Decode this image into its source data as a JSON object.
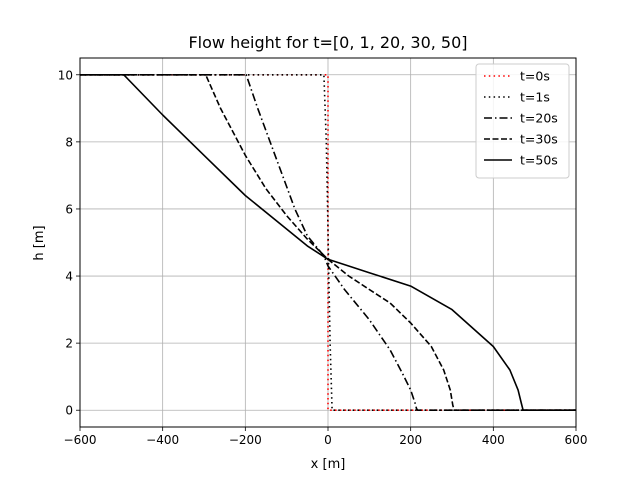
{
  "chart_data": {
    "type": "line",
    "title": "Flow height for t=[0, 1, 20, 30, 50]",
    "xlabel": "x [m]",
    "ylabel": "h [m]",
    "xlim": [
      -600,
      600
    ],
    "ylim": [
      -0.5,
      10.5
    ],
    "xticks": [
      -600,
      -400,
      -200,
      0,
      200,
      400,
      600
    ],
    "xtick_labels": [
      "−600",
      "−400",
      "−200",
      "0",
      "200",
      "400",
      "600"
    ],
    "yticks": [
      0,
      2,
      4,
      6,
      8,
      10
    ],
    "ytick_labels": [
      "0",
      "2",
      "4",
      "6",
      "8",
      "10"
    ],
    "grid": true,
    "legend_position": "top-right",
    "series": [
      {
        "name": "t=0s",
        "color": "#ff0000",
        "style": "dotted",
        "x": [
          -600,
          0,
          0,
          600
        ],
        "y": [
          10,
          10,
          0,
          0
        ]
      },
      {
        "name": "t=1s",
        "color": "#000000",
        "style": "dotted",
        "x": [
          -600,
          -10,
          -4,
          -1,
          2,
          5,
          10,
          600
        ],
        "y": [
          10,
          10,
          8,
          6,
          4,
          2,
          0,
          0
        ]
      },
      {
        "name": "t=20s",
        "color": "#000000",
        "style": "dashdot",
        "x": [
          -600,
          -198,
          -170,
          -140,
          -110,
          -80,
          -50,
          -10,
          0,
          40,
          100,
          150,
          180,
          200,
          211,
          214,
          217,
          600
        ],
        "y": [
          10,
          10,
          9.0,
          8.0,
          7.0,
          6.0,
          5.2,
          4.6,
          4.3,
          3.6,
          2.7,
          1.8,
          1.1,
          0.6,
          0.2,
          0.05,
          0,
          0
        ]
      },
      {
        "name": "t=30s",
        "color": "#000000",
        "style": "dashed",
        "x": [
          -600,
          -296,
          -260,
          -200,
          -150,
          -100,
          -50,
          0,
          50,
          100,
          150,
          200,
          250,
          280,
          296,
          302,
          305,
          600
        ],
        "y": [
          10,
          10,
          9.0,
          7.6,
          6.6,
          5.8,
          5.1,
          4.5,
          4.0,
          3.6,
          3.2,
          2.6,
          1.9,
          1.2,
          0.6,
          0.15,
          0,
          0
        ]
      },
      {
        "name": "t=50s",
        "color": "#000000",
        "style": "solid",
        "x": [
          -600,
          -494,
          -400,
          -300,
          -200,
          -100,
          -50,
          0,
          50,
          100,
          200,
          300,
          400,
          440,
          460,
          468,
          472,
          600
        ],
        "y": [
          10,
          10,
          8.8,
          7.6,
          6.4,
          5.4,
          4.9,
          4.5,
          4.3,
          4.1,
          3.7,
          3.0,
          1.9,
          1.2,
          0.6,
          0.2,
          0,
          0
        ]
      }
    ]
  }
}
